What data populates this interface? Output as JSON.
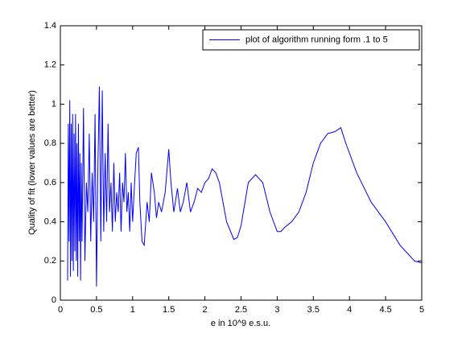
{
  "chart_data": {
    "type": "line",
    "xlabel": "e in 10^9 e.s.u.",
    "ylabel": "Quality of fit (lower values are better)",
    "legend": "northeast",
    "grid": false,
    "xlim": [
      0,
      5
    ],
    "xticks": [
      0,
      0.5,
      1,
      1.5,
      2,
      2.5,
      3,
      3.5,
      4,
      4.5,
      5
    ],
    "ylim": [
      0,
      1.4
    ],
    "yticks": [
      0,
      0.2,
      0.4,
      0.6,
      0.8,
      1,
      1.2,
      1.4
    ],
    "x": [
      0.1,
      0.11,
      0.12,
      0.13,
      0.14,
      0.15,
      0.16,
      0.17,
      0.18,
      0.19,
      0.2,
      0.21,
      0.22,
      0.23,
      0.24,
      0.25,
      0.26,
      0.27,
      0.28,
      0.29,
      0.3,
      0.32,
      0.34,
      0.36,
      0.38,
      0.4,
      0.42,
      0.44,
      0.46,
      0.48,
      0.5,
      0.52,
      0.54,
      0.56,
      0.58,
      0.6,
      0.62,
      0.64,
      0.66,
      0.68,
      0.7,
      0.72,
      0.74,
      0.76,
      0.78,
      0.8,
      0.82,
      0.84,
      0.86,
      0.88,
      0.9,
      0.92,
      0.94,
      0.96,
      0.98,
      1.0,
      1.02,
      1.05,
      1.08,
      1.1,
      1.13,
      1.16,
      1.2,
      1.23,
      1.26,
      1.3,
      1.33,
      1.36,
      1.4,
      1.45,
      1.5,
      1.53,
      1.57,
      1.62,
      1.66,
      1.7,
      1.75,
      1.8,
      1.85,
      1.9,
      1.95,
      2.0,
      2.05,
      2.1,
      2.15,
      2.2,
      2.3,
      2.4,
      2.45,
      2.5,
      2.6,
      2.7,
      2.8,
      2.9,
      3.0,
      3.05,
      3.1,
      3.2,
      3.3,
      3.4,
      3.5,
      3.6,
      3.7,
      3.8,
      3.88,
      3.95,
      4.1,
      4.3,
      4.5,
      4.7,
      4.9,
      5.0
    ],
    "series": [
      {
        "name": "plot of algorithm running form .1 to 5",
        "color": "#0000ff",
        "values": [
          0.1,
          0.9,
          0.3,
          1.02,
          0.12,
          0.9,
          0.2,
          0.95,
          0.15,
          0.85,
          0.25,
          0.95,
          0.2,
          0.8,
          0.12,
          0.9,
          0.3,
          0.75,
          0.1,
          0.7,
          0.3,
          0.98,
          0.2,
          0.6,
          0.45,
          0.85,
          0.3,
          0.65,
          0.4,
          0.95,
          0.07,
          0.7,
          1.09,
          0.3,
          1.07,
          0.35,
          0.75,
          0.4,
          0.9,
          0.45,
          0.6,
          0.35,
          0.7,
          0.4,
          0.55,
          0.45,
          0.65,
          0.35,
          0.6,
          0.5,
          0.75,
          0.45,
          0.55,
          0.35,
          0.6,
          0.4,
          0.55,
          0.75,
          0.78,
          0.5,
          0.3,
          0.28,
          0.5,
          0.4,
          0.65,
          0.55,
          0.42,
          0.5,
          0.45,
          0.55,
          0.77,
          0.6,
          0.45,
          0.57,
          0.45,
          0.5,
          0.6,
          0.45,
          0.5,
          0.57,
          0.55,
          0.6,
          0.62,
          0.67,
          0.65,
          0.6,
          0.4,
          0.31,
          0.32,
          0.38,
          0.6,
          0.64,
          0.6,
          0.45,
          0.35,
          0.35,
          0.37,
          0.4,
          0.45,
          0.55,
          0.7,
          0.8,
          0.85,
          0.86,
          0.88,
          0.8,
          0.65,
          0.5,
          0.4,
          0.28,
          0.2,
          0.19
        ]
      }
    ]
  }
}
